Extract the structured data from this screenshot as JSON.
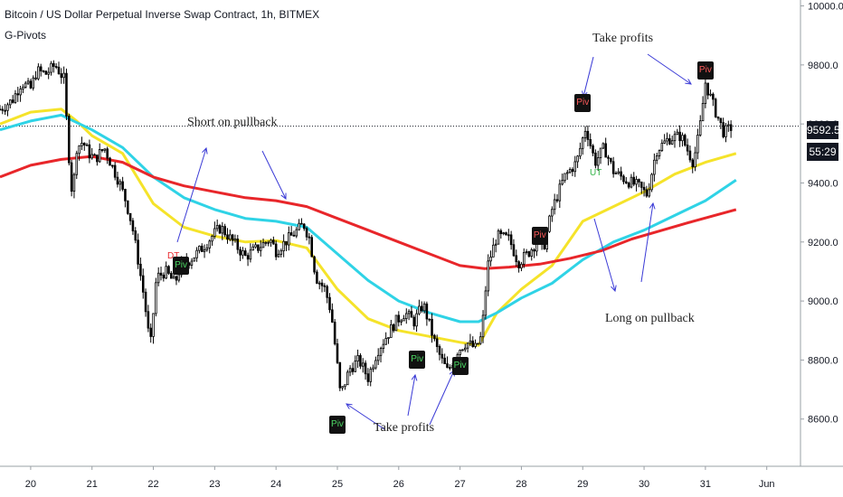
{
  "header": {
    "title": "Bitcoin / US Dollar Perpetual Inverse Swap Contract, 1h, BITMEX",
    "indicator": "G-Pivots"
  },
  "annotations": {
    "short_on_pullback": "Short on pullback",
    "take_profits_top": "Take profits",
    "take_profits_bottom": "Take profits",
    "long_on_pullback": "Long on pullback"
  },
  "price_tag": {
    "price": "9592.5",
    "countdown": "55:29"
  },
  "colors": {
    "candle": "#000000",
    "ma_fast": "#f5e32a",
    "ma_mid": "#2fd3e6",
    "ma_slow": "#e8262a",
    "arrow": "#3b3bd6",
    "piv_high_text": "#ff5a5a",
    "piv_low_text": "#4cd964",
    "dt_color": "#e8262a",
    "ut_color": "#2fb344"
  },
  "labels": {
    "piv_text": "Piv",
    "dt_text": "DT",
    "ut_text": "UT"
  },
  "chart_data": {
    "type": "candlestick",
    "title": "Bitcoin / US Dollar Perpetual Inverse Swap Contract, 1h, BITMEX",
    "y_ticks": [
      8600,
      8800,
      9000,
      9200,
      9400,
      9600,
      9800,
      10000
    ],
    "y_tick_labels": [
      "8600.0",
      "8800.0",
      "9000.0",
      "9200.0",
      "9400.0",
      "9600.0",
      "9800.0",
      "10000.0"
    ],
    "ylim": [
      8440,
      10020
    ],
    "x_ticks": [
      20,
      21,
      22,
      23,
      24,
      25,
      26,
      27,
      28,
      29,
      30,
      31,
      32
    ],
    "x_tick_labels": [
      "20",
      "21",
      "22",
      "23",
      "24",
      "25",
      "26",
      "27",
      "28",
      "29",
      "30",
      "31",
      "Jun"
    ],
    "xlim": [
      19.5,
      32.55
    ],
    "last_price": 9592.5,
    "close_path": [
      [
        19.5,
        9650
      ],
      [
        19.7,
        9680
      ],
      [
        19.85,
        9740
      ],
      [
        20.0,
        9720
      ],
      [
        20.1,
        9780
      ],
      [
        20.25,
        9770
      ],
      [
        20.4,
        9800
      ],
      [
        20.55,
        9750
      ],
      [
        20.6,
        9550
      ],
      [
        20.68,
        9350
      ],
      [
        20.75,
        9520
      ],
      [
        20.85,
        9540
      ],
      [
        20.95,
        9500
      ],
      [
        21.05,
        9480
      ],
      [
        21.2,
        9520
      ],
      [
        21.3,
        9470
      ],
      [
        21.45,
        9400
      ],
      [
        21.55,
        9340
      ],
      [
        21.65,
        9260
      ],
      [
        21.75,
        9140
      ],
      [
        21.85,
        9010
      ],
      [
        21.95,
        8840
      ],
      [
        22.05,
        9080
      ],
      [
        22.2,
        9100
      ],
      [
        22.35,
        9060
      ],
      [
        22.45,
        9120
      ],
      [
        22.6,
        9140
      ],
      [
        22.8,
        9180
      ],
      [
        23.0,
        9230
      ],
      [
        23.1,
        9250
      ],
      [
        23.3,
        9200
      ],
      [
        23.5,
        9150
      ],
      [
        23.7,
        9180
      ],
      [
        23.9,
        9210
      ],
      [
        24.0,
        9170
      ],
      [
        24.15,
        9200
      ],
      [
        24.3,
        9230
      ],
      [
        24.45,
        9260
      ],
      [
        24.55,
        9210
      ],
      [
        24.65,
        9080
      ],
      [
        24.8,
        9040
      ],
      [
        24.9,
        8960
      ],
      [
        25.0,
        8780
      ],
      [
        25.05,
        8680
      ],
      [
        25.2,
        8770
      ],
      [
        25.35,
        8800
      ],
      [
        25.5,
        8740
      ],
      [
        25.65,
        8830
      ],
      [
        25.8,
        8880
      ],
      [
        25.95,
        8930
      ],
      [
        26.1,
        8960
      ],
      [
        26.25,
        8930
      ],
      [
        26.4,
        8990
      ],
      [
        26.5,
        8920
      ],
      [
        26.6,
        8850
      ],
      [
        26.7,
        8800
      ],
      [
        26.8,
        8760
      ],
      [
        26.95,
        8830
      ],
      [
        27.1,
        8860
      ],
      [
        27.25,
        8840
      ],
      [
        27.35,
        8880
      ],
      [
        27.45,
        9120
      ],
      [
        27.6,
        9220
      ],
      [
        27.8,
        9210
      ],
      [
        27.95,
        9130
      ],
      [
        28.1,
        9160
      ],
      [
        28.25,
        9200
      ],
      [
        28.35,
        9170
      ],
      [
        28.5,
        9310
      ],
      [
        28.7,
        9420
      ],
      [
        28.9,
        9470
      ],
      [
        29.05,
        9590
      ],
      [
        29.2,
        9470
      ],
      [
        29.35,
        9520
      ],
      [
        29.5,
        9440
      ],
      [
        29.7,
        9410
      ],
      [
        29.9,
        9390
      ],
      [
        30.05,
        9360
      ],
      [
        30.2,
        9510
      ],
      [
        30.4,
        9550
      ],
      [
        30.6,
        9560
      ],
      [
        30.8,
        9470
      ],
      [
        30.9,
        9570
      ],
      [
        31.0,
        9740
      ],
      [
        31.15,
        9650
      ],
      [
        31.3,
        9570
      ],
      [
        31.45,
        9592.5
      ]
    ],
    "series": [
      {
        "name": "",
        "color": "#f5e32a",
        "points": [
          [
            19.5,
            9600
          ],
          [
            20.0,
            9640
          ],
          [
            20.5,
            9650
          ],
          [
            20.75,
            9610
          ],
          [
            21.0,
            9560
          ],
          [
            21.5,
            9500
          ],
          [
            22.0,
            9330
          ],
          [
            22.5,
            9250
          ],
          [
            23.0,
            9220
          ],
          [
            23.5,
            9200
          ],
          [
            24.0,
            9205
          ],
          [
            24.5,
            9180
          ],
          [
            25.0,
            9040
          ],
          [
            25.5,
            8940
          ],
          [
            26.0,
            8900
          ],
          [
            26.5,
            8880
          ],
          [
            27.0,
            8860
          ],
          [
            27.3,
            8850
          ],
          [
            27.6,
            8960
          ],
          [
            28.0,
            9040
          ],
          [
            28.5,
            9120
          ],
          [
            29.0,
            9270
          ],
          [
            29.5,
            9320
          ],
          [
            30.0,
            9370
          ],
          [
            30.5,
            9430
          ],
          [
            31.0,
            9470
          ],
          [
            31.5,
            9500
          ]
        ]
      },
      {
        "name": "",
        "color": "#2fd3e6",
        "points": [
          [
            19.5,
            9580
          ],
          [
            20.0,
            9610
          ],
          [
            20.5,
            9630
          ],
          [
            21.0,
            9580
          ],
          [
            21.5,
            9520
          ],
          [
            22.0,
            9420
          ],
          [
            22.5,
            9350
          ],
          [
            23.0,
            9310
          ],
          [
            23.5,
            9280
          ],
          [
            24.0,
            9270
          ],
          [
            24.5,
            9250
          ],
          [
            25.0,
            9160
          ],
          [
            25.5,
            9070
          ],
          [
            26.0,
            9000
          ],
          [
            26.5,
            8960
          ],
          [
            27.0,
            8930
          ],
          [
            27.3,
            8930
          ],
          [
            27.6,
            8960
          ],
          [
            28.0,
            9010
          ],
          [
            28.5,
            9060
          ],
          [
            29.0,
            9140
          ],
          [
            29.5,
            9200
          ],
          [
            30.0,
            9240
          ],
          [
            30.5,
            9290
          ],
          [
            31.0,
            9340
          ],
          [
            31.5,
            9410
          ]
        ]
      },
      {
        "name": "",
        "color": "#e8262a",
        "points": [
          [
            19.5,
            9420
          ],
          [
            20.0,
            9460
          ],
          [
            20.5,
            9480
          ],
          [
            21.0,
            9490
          ],
          [
            21.5,
            9470
          ],
          [
            22.0,
            9420
          ],
          [
            22.5,
            9390
          ],
          [
            23.0,
            9370
          ],
          [
            23.5,
            9350
          ],
          [
            24.0,
            9340
          ],
          [
            24.5,
            9320
          ],
          [
            25.0,
            9280
          ],
          [
            25.5,
            9240
          ],
          [
            26.0,
            9200
          ],
          [
            26.5,
            9160
          ],
          [
            27.0,
            9120
          ],
          [
            27.4,
            9110
          ],
          [
            27.8,
            9115
          ],
          [
            28.3,
            9125
          ],
          [
            28.8,
            9145
          ],
          [
            29.3,
            9170
          ],
          [
            29.8,
            9210
          ],
          [
            30.3,
            9240
          ],
          [
            30.8,
            9270
          ],
          [
            31.5,
            9310
          ]
        ]
      }
    ],
    "pivots": [
      {
        "x": 22.45,
        "price": 9120,
        "kind": "low"
      },
      {
        "x": 25.0,
        "price": 8580,
        "kind": "low"
      },
      {
        "x": 26.3,
        "price": 8800,
        "kind": "low"
      },
      {
        "x": 27.0,
        "price": 8780,
        "kind": "low"
      },
      {
        "x": 28.3,
        "price": 9220,
        "kind": "high"
      },
      {
        "x": 29.0,
        "price": 9670,
        "kind": "high"
      },
      {
        "x": 31.0,
        "price": 9780,
        "kind": "high"
      }
    ]
  }
}
